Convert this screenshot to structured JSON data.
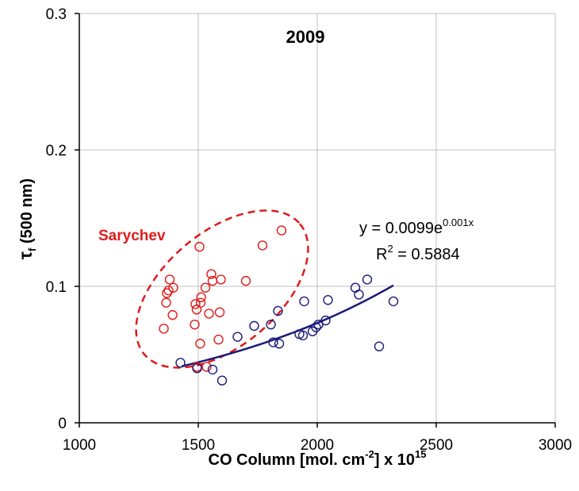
{
  "chart_data": {
    "type": "scatter",
    "title": "2009",
    "xlabel": {
      "main": "CO Column [mol. cm",
      "sup1": "-2",
      "mid": "] x 10",
      "sup2": "15"
    },
    "ylabel": {
      "symbol": "τ",
      "subscript": "f",
      "rest": " (500 nm)"
    },
    "xlim": [
      1000,
      3000
    ],
    "ylim": [
      0,
      0.3
    ],
    "x_ticks": [
      {
        "value": 1000,
        "label": "1000"
      },
      {
        "value": 1500,
        "label": "1500"
      },
      {
        "value": 2000,
        "label": "2000"
      },
      {
        "value": 2500,
        "label": "2500"
      },
      {
        "value": 3000,
        "label": "3000"
      }
    ],
    "y_ticks": [
      {
        "value": 0,
        "label": "0"
      },
      {
        "value": 0.1,
        "label": "0.1"
      },
      {
        "value": 0.2,
        "label": "0.2"
      },
      {
        "value": 0.3,
        "label": "0.3"
      }
    ],
    "grid": true,
    "colors": {
      "red_series": "#e01b1b",
      "blue_series": "#1a1a7a",
      "grid": "#bfbfbf",
      "axis": "#000000"
    },
    "series": [
      {
        "color": "red",
        "points": [
          [
            1355,
            0.069
          ],
          [
            1365,
            0.088
          ],
          [
            1368,
            0.095
          ],
          [
            1375,
            0.097
          ],
          [
            1380,
            0.105
          ],
          [
            1392,
            0.079
          ],
          [
            1395,
            0.099
          ],
          [
            1485,
            0.072
          ],
          [
            1488,
            0.087
          ],
          [
            1493,
            0.083
          ],
          [
            1495,
            0.041
          ],
          [
            1505,
            0.129
          ],
          [
            1508,
            0.058
          ],
          [
            1510,
            0.088
          ],
          [
            1512,
            0.092
          ],
          [
            1530,
            0.099
          ],
          [
            1535,
            0.041
          ],
          [
            1545,
            0.08
          ],
          [
            1555,
            0.109
          ],
          [
            1560,
            0.104
          ],
          [
            1585,
            0.061
          ],
          [
            1590,
            0.081
          ],
          [
            1595,
            0.105
          ],
          [
            1700,
            0.104
          ],
          [
            1770,
            0.13
          ],
          [
            1850,
            0.141
          ]
        ]
      },
      {
        "color": "navy",
        "points": [
          [
            1425,
            0.044
          ],
          [
            1495,
            0.04
          ],
          [
            1560,
            0.039
          ],
          [
            1600,
            0.031
          ],
          [
            1665,
            0.063
          ],
          [
            1735,
            0.071
          ],
          [
            1805,
            0.072
          ],
          [
            1815,
            0.059
          ],
          [
            1835,
            0.082
          ],
          [
            1840,
            0.058
          ],
          [
            1925,
            0.065
          ],
          [
            1940,
            0.064
          ],
          [
            1945,
            0.089
          ],
          [
            1980,
            0.067
          ],
          [
            1995,
            0.07
          ],
          [
            2005,
            0.072
          ],
          [
            2035,
            0.075
          ],
          [
            2045,
            0.09
          ],
          [
            2160,
            0.099
          ],
          [
            2175,
            0.094
          ],
          [
            2210,
            0.105
          ],
          [
            2260,
            0.056
          ],
          [
            2320,
            0.089
          ]
        ]
      }
    ],
    "trendline": {
      "type": "exponential",
      "a": 0.0099,
      "b": 0.001,
      "x_range": [
        1430,
        2320
      ],
      "color": "#1a1a7a"
    },
    "annotations": {
      "equation_main": "y = 0.0099e",
      "equation_exp": "0.001x",
      "r2_prefix": "R",
      "r2_sup": "2",
      "r2_rest": " = 0.5884",
      "cluster_label": "Sarychev"
    },
    "cluster_ellipse": {
      "center": [
        1600,
        0.098
      ],
      "color": "#e01b1b"
    }
  }
}
